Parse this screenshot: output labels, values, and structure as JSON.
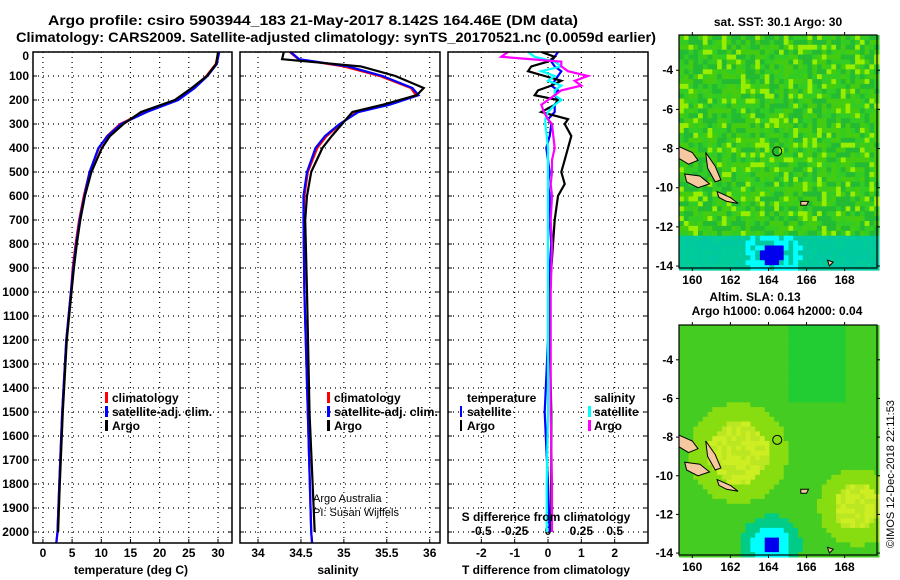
{
  "title": {
    "line1": "Argo profile: csiro 5903944_183 21-May-2017 8.142S 164.46E (DM data)",
    "line2": "Climatology: CARS2009. Satellite-adjusted climatology: synTS_20170521.nc (0.0059d earlier)"
  },
  "credit": {
    "argo": "Argo Australia",
    "pi": "PI: Susan Wijffels",
    "imos": "©IMOS 12-Dec-2018 22:11:53"
  },
  "colors": {
    "climatology": "#ff0000",
    "satellite": "#0000ff",
    "argo": "#000000",
    "sal_satellite": "#00ffff",
    "sal_argo": "#ff00ff"
  },
  "chart_data": [
    {
      "type": "line",
      "title": "Temperature profile",
      "xlabel": "temperature (deg C)",
      "ylabel": "depth",
      "xlim": [
        -1.7,
        32.4
      ],
      "ylim": [
        2146,
        -30
      ],
      "xticks": [
        0,
        5,
        10,
        15,
        20,
        25,
        30
      ],
      "yticks": [
        0,
        100,
        200,
        300,
        400,
        500,
        600,
        700,
        800,
        900,
        1000,
        1100,
        1200,
        1300,
        1400,
        1500,
        1600,
        1700,
        1800,
        1900,
        2000
      ],
      "grid": true,
      "legend": {
        "position": "lower-left",
        "entries": [
          "climatology",
          "satellite-adj. clim.",
          "Argo"
        ]
      },
      "depth": [
        0,
        50,
        100,
        150,
        200,
        250,
        300,
        350,
        400,
        500,
        600,
        700,
        800,
        900,
        1000,
        1200,
        1500,
        1800,
        2000,
        2146
      ],
      "series": [
        {
          "name": "climatology",
          "values": [
            30.1,
            29.6,
            28.0,
            25.8,
            23.0,
            17.5,
            13.2,
            11.0,
            9.6,
            8.0,
            7.0,
            6.2,
            5.6,
            5.1,
            4.8,
            4.0,
            3.3,
            2.8,
            2.5,
            2.3
          ]
        },
        {
          "name": "satellite-adj. clim.",
          "values": [
            30.2,
            29.8,
            28.2,
            26.0,
            23.2,
            17.8,
            13.4,
            11.1,
            9.5,
            8.0,
            7.1,
            6.3,
            5.7,
            5.2,
            4.8,
            4.0,
            3.3,
            2.8,
            2.5,
            2.3
          ]
        },
        {
          "name": "Argo",
          "values": [
            30.0,
            29.7,
            28.1,
            25.5,
            22.6,
            16.8,
            13.8,
            11.5,
            10.1,
            8.3,
            7.2,
            6.4,
            5.8,
            5.3,
            4.9,
            4.1,
            3.4,
            2.9,
            2.6,
            null
          ]
        }
      ]
    },
    {
      "type": "line",
      "title": "Salinity profile",
      "xlabel": "salinity",
      "xlim": [
        33.79,
        36.12
      ],
      "ylim": [
        2146,
        -30
      ],
      "xticks": [
        34,
        34.5,
        35,
        35.5,
        36
      ],
      "grid": true,
      "legend": {
        "position": "lower-right",
        "entries": [
          "climatology",
          "satellite-adj. clim.",
          "Argo"
        ]
      },
      "depth": [
        0,
        30,
        60,
        100,
        150,
        180,
        220,
        250,
        300,
        350,
        400,
        500,
        600,
        700,
        1000,
        1500,
        2000,
        2146
      ],
      "series": [
        {
          "name": "climatology",
          "values": [
            34.37,
            34.47,
            35.0,
            35.42,
            35.78,
            35.84,
            35.5,
            35.15,
            34.96,
            34.8,
            34.69,
            34.58,
            34.54,
            34.53,
            34.54,
            34.58,
            34.62,
            34.63
          ]
        },
        {
          "name": "satellite-adj. clim.",
          "values": [
            34.38,
            34.48,
            35.05,
            35.45,
            35.8,
            35.87,
            35.53,
            35.17,
            34.95,
            34.78,
            34.67,
            34.57,
            34.53,
            34.53,
            34.54,
            34.58,
            34.62,
            34.63
          ]
        },
        {
          "name": "Argo",
          "values": [
            34.3,
            34.28,
            35.2,
            35.6,
            35.93,
            35.85,
            35.45,
            35.1,
            34.98,
            34.86,
            34.75,
            34.62,
            34.57,
            34.55,
            34.57,
            34.6,
            34.66,
            null
          ]
        }
      ]
    },
    {
      "type": "line",
      "title": "Difference from climatology",
      "xlabel": "T difference from climatology",
      "xlabel2": "S difference from climatology",
      "xlim": [
        -3,
        3
      ],
      "xticks": [
        -2,
        -1,
        0,
        1,
        2
      ],
      "xticks2": [
        -0.5,
        -0.25,
        0,
        0.25,
        0.5
      ],
      "xtick2_labels": [
        "-0.5",
        "-0.25",
        "0",
        "0.25",
        "0.5"
      ],
      "ylim": [
        2146,
        -30
      ],
      "grid": true,
      "legend": {
        "temperature_title": "temperature",
        "salinity_title": "salinity",
        "entries": [
          "satellite",
          "Argo",
          "satellite",
          "Argo"
        ]
      },
      "depth": [
        0,
        20,
        40,
        60,
        80,
        100,
        120,
        140,
        160,
        180,
        200,
        220,
        250,
        280,
        300,
        350,
        400,
        450,
        500,
        550,
        600,
        700,
        800,
        1000,
        1200,
        1500,
        1800,
        2000
      ],
      "series": [
        {
          "name": "temperature satellite",
          "values": [
            0.3,
            0.2,
            0.1,
            0.2,
            0.4,
            0.3,
            0.2,
            0.1,
            0.3,
            0.2,
            0.3,
            0.2,
            0.2,
            0.0,
            0.1,
            0.05,
            -0.05,
            0.0,
            0.05,
            0.0,
            0.05,
            0.05,
            0.1,
            0.0,
            0.0,
            -0.1,
            0.0,
            0.05
          ]
        },
        {
          "name": "temperature Argo",
          "values": [
            -0.2,
            0.2,
            0.0,
            -0.5,
            -0.6,
            -0.1,
            0.4,
            0.1,
            -0.3,
            -0.4,
            0.3,
            0.2,
            -0.2,
            0.6,
            0.5,
            0.7,
            0.6,
            0.5,
            0.4,
            0.5,
            0.3,
            0.2,
            0.15,
            0.05,
            0.05,
            0.1,
            0.1,
            0.1
          ]
        },
        {
          "name": "salinity satellite",
          "values": [
            -0.15,
            -0.1,
            0.05,
            0.1,
            -0.05,
            0.05,
            0.0,
            0.1,
            0.05,
            0.05,
            0.1,
            0.05,
            0.0,
            -0.02,
            -0.02,
            -0.01,
            0.0,
            0.0,
            0.0,
            0.0,
            0.0,
            0.0,
            0.0,
            0.0,
            0.0,
            0.0,
            -0.01,
            -0.01
          ]
        },
        {
          "name": "salinity Argo",
          "values": [
            -0.3,
            -0.35,
            0.1,
            0.1,
            0.15,
            0.3,
            0.2,
            0.25,
            0.1,
            0.05,
            0.0,
            -0.05,
            -0.03,
            0.0,
            0.03,
            0.04,
            0.05,
            0.03,
            0.03,
            0.02,
            0.03,
            0.02,
            0.03,
            0.02,
            0.02,
            0.02,
            0.03,
            0.03
          ]
        }
      ]
    }
  ],
  "maps": {
    "sst": {
      "title": "sat. SST: 30.1 Argo: 30",
      "lon_ticks": [
        160,
        162,
        164,
        166,
        168
      ],
      "lat_ticks": [
        -4,
        -6,
        -8,
        -10,
        -12,
        -14
      ],
      "lon_range": [
        159.3,
        169.7
      ],
      "lat_range": [
        -14.1,
        -2.2
      ],
      "float_lon": 164.46,
      "float_lat": -8.142
    },
    "sla": {
      "title": "Altim. SLA: 0.13",
      "subtitle": "Argo h1000: 0.064 h2000: 0.04",
      "lon_ticks": [
        160,
        162,
        164,
        166,
        168
      ],
      "lat_ticks": [
        -4,
        -6,
        -8,
        -10,
        -12,
        -14
      ],
      "lon_range": [
        159.3,
        169.7
      ],
      "lat_range": [
        -14.1,
        -2.2
      ],
      "float_lon": 164.46,
      "float_lat": -8.142
    }
  }
}
